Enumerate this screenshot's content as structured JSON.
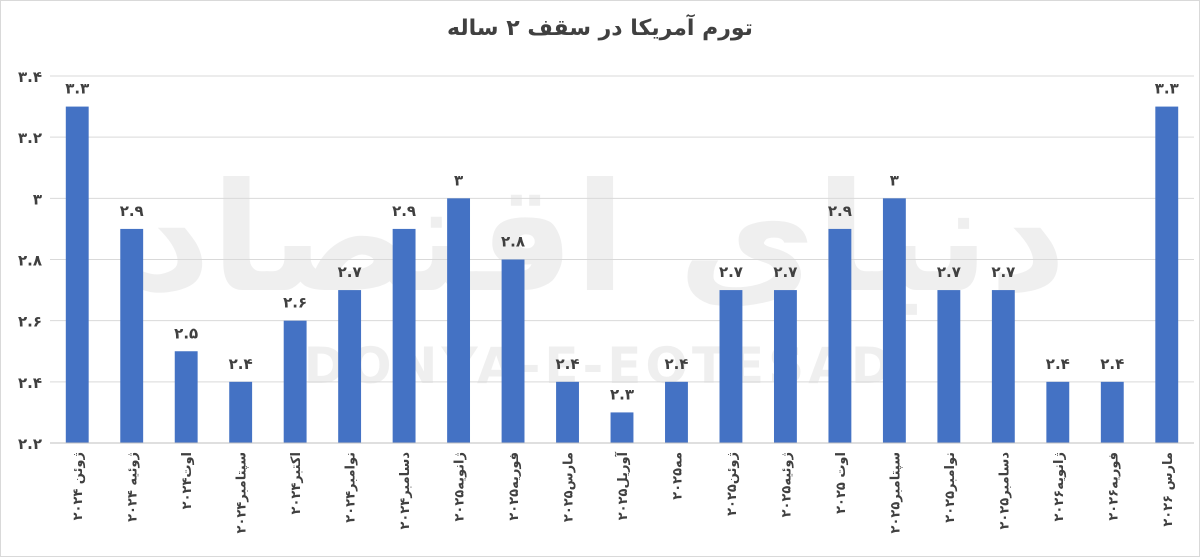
{
  "chart_data": {
    "type": "bar",
    "title": "تورم آمریکا در سقف ۲ ساله",
    "watermark": {
      "text": "DONYA-E-EQTESAD",
      "logo_text": "دنیای اقتصاد"
    },
    "categories": [
      "ژوئن ۲۰۲۴",
      "ژوئیه ۲۰۲۴",
      "اوت۲۰۲۴",
      "سپتامبر۲۰۲۴",
      "اکتبر۲۰۲۴",
      "نوامبر۲۰۲۴",
      "دسامبر۲۰۲۴",
      "ژانویه۲۰۲۵",
      "فوریه۲۰۲۵",
      "مارس۲۰۲۵",
      "آوریل۲۰۲۵",
      "مه۲۰۲۵",
      "ژوئن۲۰۲۵",
      "ژوئیه۲۰۲۵",
      "اوت ۲۰۲۵",
      "سپتامبر۲۰۲۵",
      "نوامبر۲۰۲۵",
      "دسامبر۲۰۲۵",
      "ژانویه۲۰۲۶",
      "فوریه۲۰۲۶",
      "مارس ۲۰۲۶"
    ],
    "values": [
      3.3,
      2.9,
      2.5,
      2.4,
      2.6,
      2.7,
      2.9,
      3,
      2.8,
      2.4,
      2.3,
      2.4,
      2.7,
      2.7,
      2.9,
      3,
      2.7,
      2.7,
      2.4,
      2.4,
      3.3
    ],
    "value_labels": [
      "۳.۳",
      "۲.۹",
      "۲.۵",
      "۲.۴",
      "۲.۶",
      "۲.۷",
      "۲.۹",
      "۳",
      "۲.۸",
      "۲.۴",
      "۲.۳",
      "۲.۴",
      "۲.۷",
      "۲.۷",
      "۲.۹",
      "۳",
      "۲.۷",
      "۲.۷",
      "۲.۴",
      "۲.۴",
      "۳.۳"
    ],
    "ylim": [
      2.2,
      3.4
    ],
    "yticks": [
      2.2,
      2.4,
      2.6,
      2.8,
      3,
      3.2,
      3.4
    ],
    "ytick_labels": [
      "۲.۲",
      "۲.۴",
      "۲.۶",
      "۲.۸",
      "۳",
      "۳.۲",
      "۳.۴"
    ],
    "grid": true,
    "bar_color": "#4472C4",
    "xlabel": "",
    "ylabel": ""
  }
}
